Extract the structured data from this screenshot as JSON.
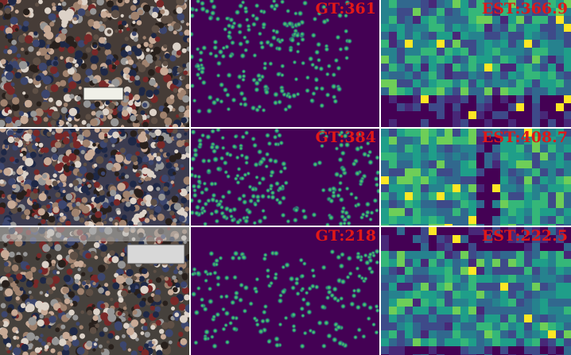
{
  "rows": [
    {
      "gt_label": "GT:361",
      "est_label": "EST:366.9"
    },
    {
      "gt_label": "GT:384",
      "est_label": "EST:408.7"
    },
    {
      "gt_label": "GT:218",
      "est_label": "EST:222.5"
    }
  ],
  "colors": {
    "background_purple": "#440154",
    "dot_core": "#7ad151",
    "dot_mid": "#22a884",
    "label_red": "#e01818"
  }
}
